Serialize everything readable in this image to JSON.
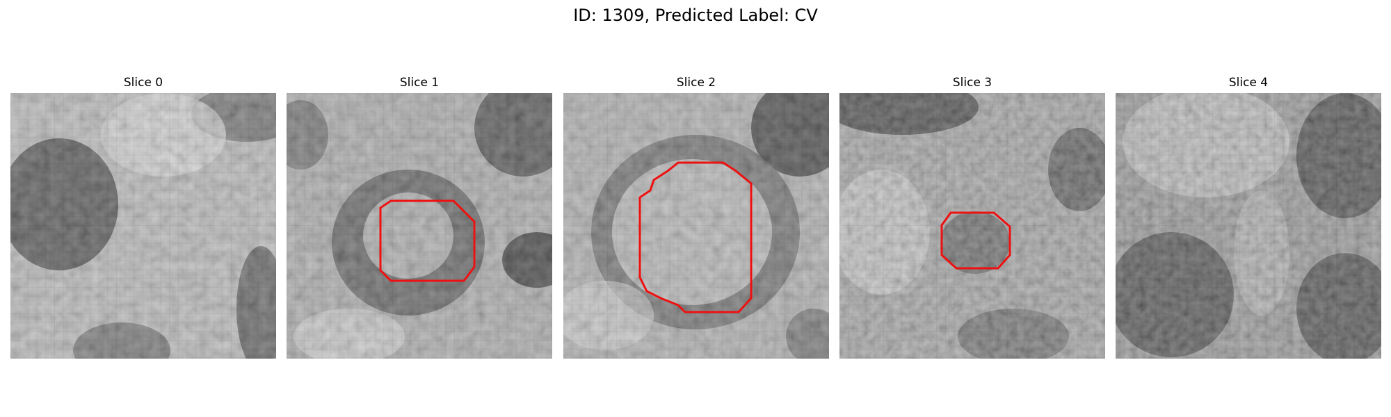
{
  "figure": {
    "title": "ID: 1309, Predicted Label: CV"
  },
  "panels": [
    {
      "title": "Slice 0",
      "has_contour": false
    },
    {
      "title": "Slice 1",
      "has_contour": true
    },
    {
      "title": "Slice 2",
      "has_contour": true
    },
    {
      "title": "Slice 3",
      "has_contour": true
    },
    {
      "title": "Slice 4",
      "has_contour": false
    }
  ],
  "contour_color": "#ee1111",
  "colormap": "gray"
}
